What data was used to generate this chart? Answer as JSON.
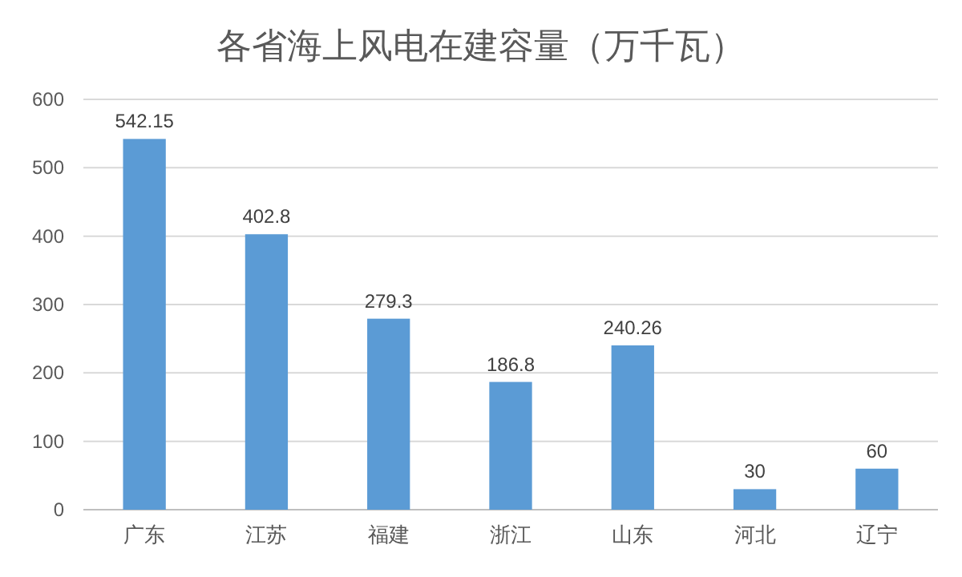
{
  "chart_data": {
    "type": "bar",
    "title": "各省海上风电在建容量（万千瓦）",
    "categories": [
      "广东",
      "江苏",
      "福建",
      "浙江",
      "山东",
      "河北",
      "辽宁"
    ],
    "values": [
      542.15,
      402.8,
      279.3,
      186.8,
      240.26,
      30,
      60
    ],
    "color": "#5b9bd5",
    "ylim": [
      0,
      600
    ],
    "yticks": [
      0,
      100,
      200,
      300,
      400,
      500,
      600
    ],
    "grid": "y",
    "data_labels": true
  }
}
